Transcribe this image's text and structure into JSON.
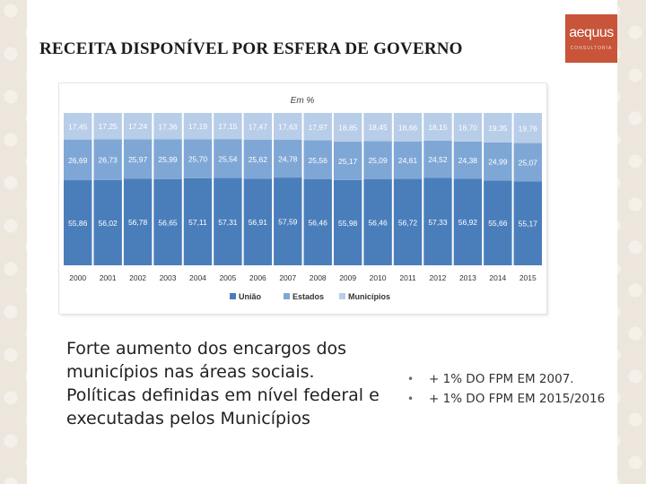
{
  "slide": {
    "title": "RECEITA DISPONÍVEL POR ESFERA DE GOVERNO",
    "logo": {
      "text": "aequus",
      "subtext": "CONSULTORIA",
      "color": "#c8543a"
    },
    "body_text": "Forte aumento dos encargos dos municípios nas áreas sociais. Políticas definidas em nível federal e executadas pelos Municípios",
    "bullets": [
      "+ 1% DO FPM EM 2007.",
      "+ 1% DO FPM EM 2015/2016"
    ]
  },
  "chart_data": {
    "type": "bar",
    "stacked": true,
    "normalized_percent": true,
    "subtitle": "Em %",
    "categories": [
      "2000",
      "2001",
      "2002",
      "2003",
      "2004",
      "2005",
      "2006",
      "2007",
      "2008",
      "2009",
      "2010",
      "2011",
      "2012",
      "2013",
      "2014",
      "2015"
    ],
    "series": [
      {
        "name": "União",
        "color": "#4a7ebb",
        "labels": [
          "55,86",
          "56,02",
          "56,78",
          "56,65",
          "57,11",
          "57,31",
          "56,91",
          "57,59",
          "56,46",
          "55,98",
          "56,46",
          "56,72",
          "57,33",
          "56,92",
          "55,66",
          "55,17"
        ]
      },
      {
        "name": "Estados",
        "color": "#7fa7d6",
        "labels": [
          "26,69",
          "26,73",
          "25,97",
          "25,99",
          "25,70",
          "25,54",
          "25,62",
          "24,78",
          "25,56",
          "25,17",
          "25,09",
          "24,61",
          "24,52",
          "24,38",
          "24,99",
          "25,07"
        ]
      },
      {
        "name": "Municípios",
        "color": "#b7cde8",
        "labels": [
          "17,45",
          "17,25",
          "17,24",
          "17,36",
          "17,19",
          "17,15",
          "17,47",
          "17,63",
          "17,97",
          "18,85",
          "18,45",
          "18,66",
          "18,15",
          "18,70",
          "19,35",
          "19,76"
        ]
      }
    ],
    "legend_position": "bottom",
    "ylim": [
      0,
      100
    ]
  }
}
